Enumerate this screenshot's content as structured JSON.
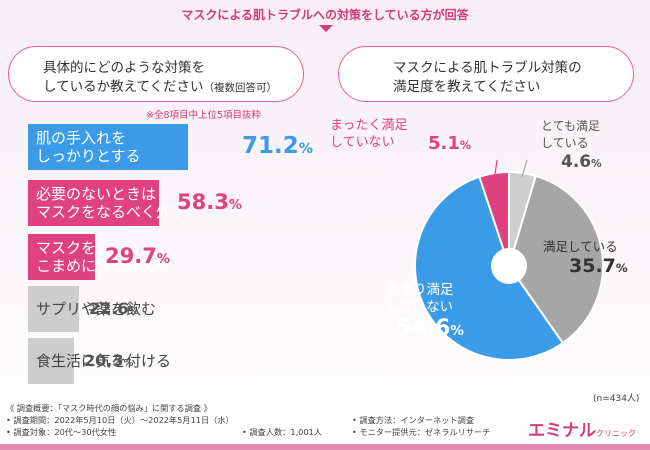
{
  "banner": "マスクによる肌トラブルへの対策をしている方が回答",
  "left_question": {
    "line1": "具体的にどのような対策を",
    "line2": "しているか教えてください",
    "suffix": "（複数回答可）"
  },
  "right_question": {
    "line1": "マスクによる肌トラブル対策の",
    "line2": "満足度を教えてください"
  },
  "note": "※全8項目中上位5項目抜粋",
  "colors": {
    "pink": "#e0417f",
    "blue": "#3b9be6",
    "gray": "#a6a6a6",
    "light_gray": "#cfcfcf",
    "accent": "#d23c7a"
  },
  "chart_data": [
    {
      "type": "bar",
      "title": "具体的にどのような対策をしているか教えてください（複数回答可）",
      "unit": "%",
      "max": 100,
      "bars": [
        {
          "line1": "肌の手入れを",
          "line2": "しっかりとする",
          "value": 71.2,
          "num": "71.2",
          "pct": "%",
          "color": "#3b9be6"
        },
        {
          "line1": "必要のないときは",
          "line2": "マスクをなるべく外す",
          "value": 58.3,
          "num": "58.3",
          "pct": "%",
          "color": "#e0417f"
        },
        {
          "line1": "マスクを",
          "line2": "こまめに取り換える",
          "value": 29.7,
          "num": "29.7",
          "pct": "%",
          "color": "#e0417f"
        },
        {
          "line1": "サプリや薬を飲む",
          "line2": "",
          "value": 22.6,
          "num": "22.6",
          "pct": "%",
          "color": "#b8b8b8"
        },
        {
          "line1": "食生活に気を付ける",
          "line2": "",
          "value": 20.3,
          "num": "20.3",
          "pct": "%",
          "color": "#b8b8b8"
        }
      ]
    },
    {
      "type": "pie",
      "title": "マスクによる肌トラブル対策の満足度を教えてください",
      "n_label": "(n=434人)",
      "slices": [
        {
          "line1": "とても満足",
          "line2": "している",
          "value": 4.6,
          "num": "4.6",
          "pct": "%",
          "color": "#cfcfcf"
        },
        {
          "line1": "満足している",
          "line2": "",
          "value": 35.7,
          "num": "35.7",
          "pct": "%",
          "color": "#a6a6a6"
        },
        {
          "line1": "あまり満足",
          "line2": "していない",
          "value": 54.6,
          "num": "54.6",
          "pct": "%",
          "color": "#3b9be6"
        },
        {
          "line1": "まったく満足",
          "line2": "していない",
          "value": 5.1,
          "num": "5.1",
          "pct": "%",
          "color": "#e0417f"
        }
      ]
    }
  ],
  "footer": {
    "overview": "《 調査概要：「マスク時代の顔の悩み」に関する調査 》",
    "period": "• 調査期間：2022年5月10日（火）〜2022年5月11日（水）",
    "target": "• 調査対象：20代〜30代女性",
    "count": "• 調査人数：1,001人",
    "method": "• 調査方法：インターネット調査",
    "provider": "• モニター提供元：ゼネラルリサーチ"
  },
  "logo": {
    "main": "エミナル",
    "sub": "クリニック"
  }
}
